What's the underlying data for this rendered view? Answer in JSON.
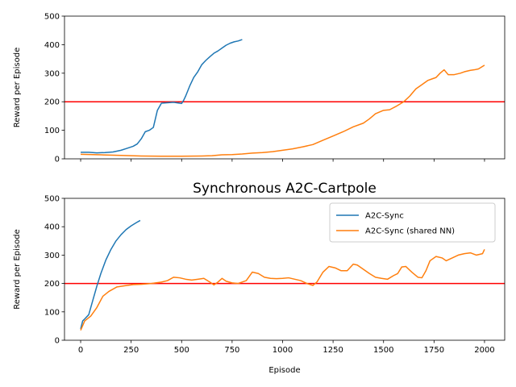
{
  "chart_data": [
    {
      "type": "line",
      "title": "",
      "xlabel": "",
      "ylabel": "Reward per Episode",
      "xlim": [
        -80,
        2100
      ],
      "ylim": [
        0,
        500
      ],
      "x_ticks": [
        0,
        250,
        500,
        750,
        1000,
        1250,
        1500,
        1750,
        2000
      ],
      "x_tick_labels_shown": false,
      "y_ticks": [
        0,
        100,
        200,
        300,
        400,
        500
      ],
      "grid": false,
      "legend": null,
      "hlines": [
        {
          "y": 200,
          "color": "#ff0000"
        }
      ],
      "series": [
        {
          "color": "#1f77b4",
          "x": [
            0,
            40,
            80,
            120,
            160,
            200,
            230,
            260,
            280,
            300,
            320,
            340,
            360,
            380,
            400,
            420,
            440,
            460,
            480,
            500,
            510,
            520,
            540,
            560,
            580,
            600,
            620,
            640,
            660,
            680,
            700,
            720,
            740,
            760,
            780,
            800
          ],
          "y": [
            23,
            23,
            21,
            22,
            24,
            30,
            37,
            44,
            52,
            70,
            95,
            100,
            110,
            170,
            195,
            196,
            197,
            198,
            196,
            194,
            205,
            220,
            255,
            285,
            305,
            330,
            345,
            358,
            370,
            378,
            388,
            398,
            405,
            410,
            413,
            418
          ]
        },
        {
          "color": "#ff7f0e",
          "x": [
            0,
            100,
            200,
            300,
            400,
            500,
            600,
            650,
            700,
            750,
            800,
            850,
            900,
            950,
            1000,
            1050,
            1100,
            1150,
            1200,
            1250,
            1300,
            1350,
            1400,
            1430,
            1460,
            1500,
            1530,
            1560,
            1600,
            1630,
            1660,
            1690,
            1720,
            1740,
            1760,
            1780,
            1800,
            1820,
            1850,
            1880,
            1900,
            1930,
            1950,
            1970,
            2000
          ],
          "y": [
            16,
            14,
            12,
            10,
            9,
            9,
            10,
            11,
            14,
            15,
            17,
            20,
            22,
            25,
            30,
            35,
            42,
            50,
            65,
            80,
            95,
            112,
            125,
            140,
            158,
            170,
            172,
            183,
            200,
            220,
            245,
            260,
            275,
            280,
            285,
            300,
            312,
            295,
            295,
            300,
            305,
            310,
            312,
            315,
            328
          ]
        }
      ]
    },
    {
      "type": "line",
      "title": "Synchronous A2C-Cartpole",
      "xlabel": "Episode",
      "ylabel": "Reward per Episode",
      "xlim": [
        -80,
        2100
      ],
      "ylim": [
        0,
        500
      ],
      "x_ticks": [
        0,
        250,
        500,
        750,
        1000,
        1250,
        1500,
        1750,
        2000
      ],
      "x_tick_labels": [
        "0",
        "250",
        "500",
        "750",
        "1000",
        "1250",
        "1500",
        "1750",
        "2000"
      ],
      "y_ticks": [
        0,
        100,
        200,
        300,
        400,
        500
      ],
      "grid": false,
      "legend": "upper right",
      "hlines": [
        {
          "y": 200,
          "color": "#ff0000"
        }
      ],
      "series": [
        {
          "name": "A2C-Sync",
          "color": "#1f77b4",
          "x": [
            0,
            10,
            20,
            40,
            60,
            80,
            100,
            125,
            150,
            175,
            200,
            225,
            250,
            275,
            295
          ],
          "y": [
            40,
            68,
            75,
            90,
            140,
            190,
            235,
            283,
            320,
            350,
            372,
            390,
            403,
            414,
            422
          ]
        },
        {
          "name": "A2C-Sync (shared NN)",
          "color": "#ff7f0e",
          "x": [
            0,
            20,
            50,
            80,
            110,
            140,
            180,
            220,
            260,
            300,
            350,
            400,
            430,
            460,
            490,
            520,
            550,
            580,
            610,
            640,
            660,
            680,
            700,
            720,
            750,
            780,
            820,
            850,
            880,
            910,
            940,
            970,
            1000,
            1030,
            1060,
            1090,
            1120,
            1150,
            1170,
            1200,
            1230,
            1260,
            1290,
            1320,
            1350,
            1370,
            1400,
            1430,
            1460,
            1490,
            1520,
            1550,
            1570,
            1590,
            1610,
            1640,
            1670,
            1690,
            1710,
            1730,
            1760,
            1790,
            1810,
            1840,
            1870,
            1900,
            1930,
            1960,
            1990,
            2000
          ],
          "y": [
            35,
            68,
            85,
            115,
            155,
            172,
            188,
            192,
            196,
            197,
            200,
            205,
            210,
            222,
            220,
            215,
            212,
            215,
            218,
            205,
            195,
            205,
            218,
            208,
            202,
            200,
            210,
            240,
            235,
            222,
            218,
            217,
            218,
            220,
            215,
            210,
            200,
            193,
            205,
            240,
            260,
            255,
            245,
            245,
            268,
            265,
            250,
            235,
            222,
            218,
            215,
            228,
            235,
            258,
            260,
            240,
            222,
            220,
            245,
            280,
            295,
            290,
            280,
            290,
            300,
            305,
            308,
            300,
            305,
            320
          ]
        }
      ]
    }
  ]
}
